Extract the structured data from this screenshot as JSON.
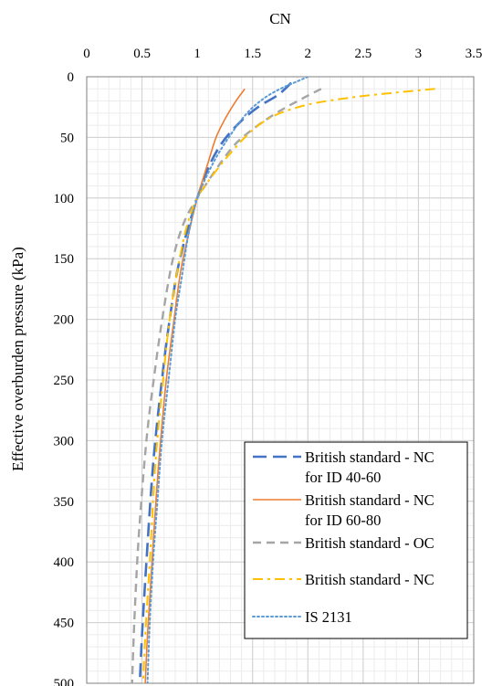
{
  "chart_data": {
    "type": "line",
    "xlabel": "CN",
    "ylabel": "Effective overburden pressure (kPa)",
    "xlim": [
      0,
      3.5
    ],
    "ylim": [
      0,
      500
    ],
    "x_axis_position": "top",
    "y_axis_reversed": true,
    "x_ticks": [
      "0",
      "0.5",
      "1",
      "1.5",
      "2",
      "2.5",
      "3",
      "3.5"
    ],
    "y_ticks": [
      "0",
      "50",
      "100",
      "150",
      "200",
      "250",
      "300",
      "350",
      "400",
      "450",
      "500"
    ],
    "grid": {
      "major": true,
      "minor": true
    },
    "legend_position": "bottom-right",
    "series": [
      {
        "name": "British standard - NC for ID 40-60",
        "legend_lines": [
          "British standard - NC",
          "for ID 40-60"
        ],
        "color": "#4472C4",
        "dash": "long-dash",
        "points": [
          [
            1.85,
            5
          ],
          [
            1.73,
            15
          ],
          [
            1.55,
            25
          ],
          [
            1.38,
            38
          ],
          [
            1.22,
            55
          ],
          [
            1.1,
            75
          ],
          [
            1.0,
            100
          ],
          [
            0.9,
            130
          ],
          [
            0.82,
            160
          ],
          [
            0.75,
            200
          ],
          [
            0.68,
            250
          ],
          [
            0.6,
            320
          ],
          [
            0.54,
            400
          ],
          [
            0.5,
            460
          ],
          [
            0.48,
            500
          ]
        ]
      },
      {
        "name": "British standard - NC for ID 60-80",
        "legend_lines": [
          "British standard - NC",
          "for ID 60-80"
        ],
        "color": "#ED7D31",
        "dash": "solid",
        "points": [
          [
            1.43,
            10
          ],
          [
            1.35,
            20
          ],
          [
            1.25,
            35
          ],
          [
            1.17,
            50
          ],
          [
            1.1,
            70
          ],
          [
            1.0,
            100
          ],
          [
            0.92,
            130
          ],
          [
            0.85,
            160
          ],
          [
            0.79,
            200
          ],
          [
            0.72,
            250
          ],
          [
            0.65,
            320
          ],
          [
            0.59,
            400
          ],
          [
            0.55,
            460
          ],
          [
            0.53,
            500
          ]
        ]
      },
      {
        "name": "British standard - OC",
        "legend_lines": [
          "British standard - OC"
        ],
        "color": "#A5A5A5",
        "dash": "dash",
        "points": [
          [
            2.12,
            10
          ],
          [
            1.95,
            18
          ],
          [
            1.75,
            28
          ],
          [
            1.55,
            40
          ],
          [
            1.35,
            55
          ],
          [
            1.18,
            75
          ],
          [
            1.0,
            100
          ],
          [
            0.88,
            120
          ],
          [
            0.78,
            150
          ],
          [
            0.7,
            190
          ],
          [
            0.62,
            240
          ],
          [
            0.54,
            300
          ],
          [
            0.47,
            380
          ],
          [
            0.43,
            450
          ],
          [
            0.41,
            500
          ]
        ]
      },
      {
        "name": "British standard - NC",
        "legend_lines": [
          "British standard - NC"
        ],
        "color": "#FFC000",
        "dash": "dash-dot",
        "points": [
          [
            3.15,
            10
          ],
          [
            2.8,
            13
          ],
          [
            2.4,
            17
          ],
          [
            2.0,
            23
          ],
          [
            1.7,
            32
          ],
          [
            1.5,
            44
          ],
          [
            1.3,
            63
          ],
          [
            1.15,
            80
          ],
          [
            1.0,
            100
          ],
          [
            0.9,
            125
          ],
          [
            0.82,
            160
          ],
          [
            0.75,
            200
          ],
          [
            0.69,
            250
          ],
          [
            0.62,
            320
          ],
          [
            0.57,
            400
          ],
          [
            0.53,
            460
          ],
          [
            0.51,
            500
          ]
        ]
      },
      {
        "name": "IS 2131",
        "legend_lines": [
          "IS 2131"
        ],
        "color": "#5B9BD5",
        "dash": "dot",
        "points": [
          [
            2.0,
            0
          ],
          [
            1.9,
            4
          ],
          [
            1.75,
            10
          ],
          [
            1.6,
            18
          ],
          [
            1.45,
            30
          ],
          [
            1.3,
            48
          ],
          [
            1.15,
            70
          ],
          [
            1.0,
            100
          ],
          [
            0.92,
            130
          ],
          [
            0.86,
            165
          ],
          [
            0.8,
            200
          ],
          [
            0.74,
            250
          ],
          [
            0.68,
            300
          ],
          [
            0.64,
            350
          ],
          [
            0.6,
            400
          ],
          [
            0.57,
            450
          ],
          [
            0.55,
            500
          ]
        ]
      }
    ]
  }
}
